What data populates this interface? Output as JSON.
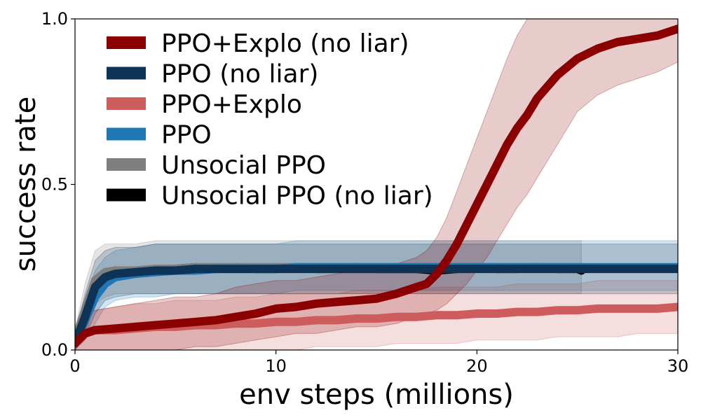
{
  "chart_data": {
    "type": "line",
    "title": "",
    "xlabel": "env steps (millions)",
    "ylabel": "success rate",
    "xlim": [
      0,
      30
    ],
    "ylim": [
      0,
      1
    ],
    "x_ticks": [
      0,
      10,
      20,
      30
    ],
    "x_tick_labels": [
      "0",
      "10",
      "20",
      "30"
    ],
    "y_ticks": [
      0,
      0.5,
      1
    ],
    "y_tick_labels": [
      "0.0",
      "0.5",
      "1.0"
    ],
    "grid": false,
    "legend_position": "top-left",
    "series": [
      {
        "name": "PPO+Explo (no liar)",
        "color": "#8b0000",
        "x": [
          0,
          0.5,
          1,
          2,
          3,
          4,
          5,
          6,
          7,
          8,
          9,
          10,
          11,
          12,
          13,
          14,
          15,
          16,
          17,
          17.5,
          18,
          18.5,
          19,
          19.5,
          20,
          20.5,
          21,
          21.5,
          22,
          22.5,
          23,
          24,
          25,
          26,
          27,
          28,
          29,
          30
        ],
        "values": [
          0.02,
          0.05,
          0.06,
          0.065,
          0.07,
          0.075,
          0.08,
          0.085,
          0.09,
          0.1,
          0.11,
          0.125,
          0.13,
          0.14,
          0.145,
          0.15,
          0.155,
          0.17,
          0.19,
          0.2,
          0.23,
          0.27,
          0.32,
          0.38,
          0.44,
          0.5,
          0.56,
          0.62,
          0.67,
          0.71,
          0.76,
          0.83,
          0.88,
          0.91,
          0.93,
          0.94,
          0.95,
          0.97
        ],
        "lower": [
          0.0,
          0.0,
          0.0,
          0.0,
          0.0,
          0.0,
          0.0,
          0.01,
          0.01,
          0.02,
          0.03,
          0.04,
          0.05,
          0.05,
          0.06,
          0.07,
          0.07,
          0.08,
          0.1,
          0.11,
          0.12,
          0.14,
          0.17,
          0.2,
          0.24,
          0.28,
          0.33,
          0.38,
          0.43,
          0.47,
          0.52,
          0.62,
          0.72,
          0.77,
          0.8,
          0.82,
          0.84,
          0.87
        ],
        "upper": [
          0.04,
          0.1,
          0.12,
          0.13,
          0.14,
          0.15,
          0.16,
          0.16,
          0.17,
          0.19,
          0.2,
          0.21,
          0.21,
          0.22,
          0.23,
          0.24,
          0.24,
          0.26,
          0.28,
          0.3,
          0.34,
          0.4,
          0.48,
          0.56,
          0.64,
          0.72,
          0.8,
          0.88,
          0.95,
          1.0,
          1.0,
          1.0,
          1.0,
          1.0,
          1.0,
          1.0,
          1.0,
          1.0
        ]
      },
      {
        "name": "PPO (no liar)",
        "color": "#0d3456",
        "x": [
          0,
          0.5,
          1,
          1.5,
          2,
          3,
          4,
          5,
          6,
          7,
          8,
          9,
          10,
          11,
          12,
          13,
          14,
          15,
          16,
          17,
          18,
          19,
          20,
          21,
          22,
          23,
          24,
          25,
          26,
          27,
          28,
          29,
          30
        ],
        "values": [
          0.02,
          0.1,
          0.19,
          0.22,
          0.23,
          0.235,
          0.24,
          0.24,
          0.245,
          0.245,
          0.245,
          0.245,
          0.245,
          0.245,
          0.245,
          0.245,
          0.245,
          0.245,
          0.245,
          0.245,
          0.245,
          0.245,
          0.245,
          0.245,
          0.245,
          0.245,
          0.245,
          0.245,
          0.245,
          0.245,
          0.245,
          0.245,
          0.245
        ],
        "lower": [
          0.0,
          0.04,
          0.11,
          0.15,
          0.16,
          0.17,
          0.17,
          0.17,
          0.17,
          0.17,
          0.17,
          0.17,
          0.17,
          0.17,
          0.17,
          0.17,
          0.17,
          0.17,
          0.17,
          0.17,
          0.17,
          0.17,
          0.17,
          0.17,
          0.17,
          0.17,
          0.17,
          0.17,
          0.17,
          0.17,
          0.17,
          0.17,
          0.17
        ],
        "upper": [
          0.05,
          0.17,
          0.27,
          0.3,
          0.31,
          0.31,
          0.32,
          0.32,
          0.32,
          0.32,
          0.32,
          0.32,
          0.32,
          0.32,
          0.32,
          0.32,
          0.32,
          0.32,
          0.32,
          0.32,
          0.32,
          0.32,
          0.32,
          0.32,
          0.32,
          0.32,
          0.32,
          0.32,
          0.32,
          0.32,
          0.32,
          0.32,
          0.32
        ]
      },
      {
        "name": "PPO+Explo",
        "color": "#cd5c5c",
        "x": [
          0,
          0.5,
          1,
          2,
          3,
          4,
          5,
          6,
          7,
          8,
          9,
          10,
          11,
          12,
          13,
          14,
          15,
          16,
          17,
          18,
          19,
          20,
          21,
          22,
          23,
          24,
          25,
          26,
          27,
          28,
          29,
          30
        ],
        "values": [
          0.02,
          0.05,
          0.06,
          0.06,
          0.065,
          0.07,
          0.07,
          0.075,
          0.075,
          0.08,
          0.08,
          0.085,
          0.085,
          0.09,
          0.09,
          0.095,
          0.095,
          0.1,
          0.1,
          0.105,
          0.105,
          0.11,
          0.11,
          0.115,
          0.115,
          0.12,
          0.12,
          0.125,
          0.125,
          0.125,
          0.125,
          0.13
        ],
        "lower": [
          0.0,
          0.0,
          0.0,
          0.0,
          0.0,
          0.0,
          0.0,
          0.0,
          0.0,
          0.0,
          0.0,
          0.0,
          0.0,
          0.01,
          0.01,
          0.01,
          0.01,
          0.02,
          0.02,
          0.02,
          0.02,
          0.03,
          0.03,
          0.03,
          0.03,
          0.04,
          0.04,
          0.04,
          0.04,
          0.05,
          0.05,
          0.05
        ],
        "upper": [
          0.04,
          0.1,
          0.12,
          0.13,
          0.14,
          0.14,
          0.15,
          0.15,
          0.15,
          0.16,
          0.16,
          0.17,
          0.17,
          0.17,
          0.17,
          0.18,
          0.18,
          0.18,
          0.18,
          0.19,
          0.19,
          0.19,
          0.19,
          0.2,
          0.2,
          0.2,
          0.2,
          0.21,
          0.21,
          0.21,
          0.21,
          0.21
        ]
      },
      {
        "name": "PPO",
        "color": "#1f77b4",
        "x": [
          0,
          0.5,
          1,
          1.5,
          2,
          3,
          4,
          5,
          6,
          7,
          8,
          9,
          10,
          11,
          12,
          13,
          14,
          15,
          16,
          17,
          18,
          19,
          20,
          21,
          22,
          23,
          24,
          25,
          26,
          27,
          28,
          29,
          30
        ],
        "values": [
          0.03,
          0.09,
          0.16,
          0.2,
          0.22,
          0.23,
          0.235,
          0.24,
          0.24,
          0.245,
          0.245,
          0.245,
          0.245,
          0.25,
          0.25,
          0.25,
          0.25,
          0.25,
          0.25,
          0.25,
          0.25,
          0.25,
          0.25,
          0.25,
          0.25,
          0.25,
          0.25,
          0.25,
          0.25,
          0.25,
          0.25,
          0.25,
          0.25
        ],
        "lower": [
          0.0,
          0.03,
          0.08,
          0.13,
          0.15,
          0.16,
          0.16,
          0.17,
          0.17,
          0.17,
          0.17,
          0.17,
          0.17,
          0.18,
          0.18,
          0.18,
          0.18,
          0.18,
          0.18,
          0.18,
          0.18,
          0.18,
          0.18,
          0.18,
          0.18,
          0.18,
          0.18,
          0.18,
          0.18,
          0.18,
          0.18,
          0.18,
          0.18
        ],
        "upper": [
          0.06,
          0.15,
          0.24,
          0.28,
          0.3,
          0.31,
          0.32,
          0.32,
          0.32,
          0.32,
          0.32,
          0.32,
          0.32,
          0.33,
          0.33,
          0.33,
          0.33,
          0.33,
          0.33,
          0.33,
          0.33,
          0.33,
          0.33,
          0.33,
          0.33,
          0.33,
          0.33,
          0.33,
          0.33,
          0.33,
          0.33,
          0.33,
          0.33
        ]
      },
      {
        "name": "Unsocial PPO",
        "color": "#7f7f7f",
        "x": [
          0,
          0.5,
          1,
          1.5,
          2,
          3,
          4,
          5,
          6,
          7,
          8,
          9,
          10,
          11,
          12,
          13,
          14,
          15,
          16,
          17,
          18,
          19,
          20,
          21,
          22,
          23,
          24,
          25.2
        ],
        "values": [
          0.03,
          0.12,
          0.21,
          0.235,
          0.24,
          0.24,
          0.245,
          0.245,
          0.25,
          0.25,
          0.25,
          0.25,
          0.25,
          0.25,
          0.25,
          0.25,
          0.25,
          0.25,
          0.25,
          0.25,
          0.25,
          0.25,
          0.25,
          0.25,
          0.25,
          0.25,
          0.25,
          0.25
        ],
        "lower": [
          0.0,
          0.05,
          0.14,
          0.16,
          0.17,
          0.17,
          0.17,
          0.17,
          0.17,
          0.17,
          0.17,
          0.17,
          0.17,
          0.17,
          0.17,
          0.17,
          0.17,
          0.17,
          0.17,
          0.17,
          0.17,
          0.17,
          0.17,
          0.17,
          0.17,
          0.17,
          0.17,
          0.17
        ],
        "upper": [
          0.06,
          0.2,
          0.3,
          0.32,
          0.32,
          0.32,
          0.33,
          0.33,
          0.33,
          0.33,
          0.33,
          0.33,
          0.33,
          0.33,
          0.33,
          0.33,
          0.33,
          0.33,
          0.33,
          0.33,
          0.33,
          0.33,
          0.33,
          0.33,
          0.33,
          0.33,
          0.33,
          0.33
        ]
      },
      {
        "name": "Unsocial PPO (no liar)",
        "color": "#000000",
        "x": [
          0,
          0.5,
          1,
          1.5,
          2,
          3,
          4,
          5,
          6,
          7,
          8,
          9,
          10,
          11,
          12,
          13,
          14,
          15,
          16,
          17,
          18,
          19,
          20,
          21,
          22,
          23,
          24,
          25,
          25.2
        ],
        "values": [
          0.02,
          0.1,
          0.2,
          0.23,
          0.24,
          0.24,
          0.24,
          0.245,
          0.25,
          0.245,
          0.25,
          0.245,
          0.245,
          0.25,
          0.245,
          0.245,
          0.25,
          0.245,
          0.245,
          0.245,
          0.24,
          0.245,
          0.25,
          0.245,
          0.245,
          0.25,
          0.245,
          0.245,
          0.24
        ]
      }
    ],
    "legend": [
      "PPO+Explo (no liar)",
      "PPO (no liar)",
      "PPO+Explo",
      "PPO",
      "Unsocial PPO",
      "Unsocial PPO (no liar)"
    ]
  }
}
